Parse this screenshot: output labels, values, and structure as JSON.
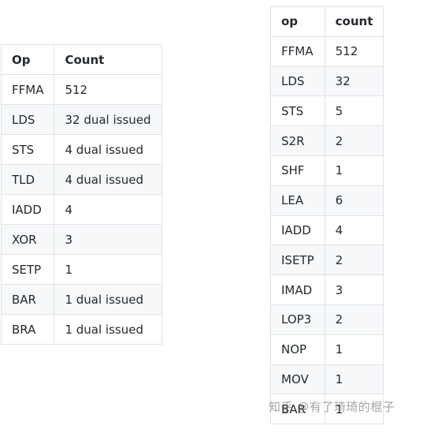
{
  "left_table": {
    "headers": [
      "Op",
      "Count"
    ],
    "rows": [
      [
        "FFMA",
        "512"
      ],
      [
        "LDS",
        "32 dual issued"
      ],
      [
        "STS",
        "4 dual issued"
      ],
      [
        "TLD",
        "4 dual issued"
      ],
      [
        "IADD",
        "4"
      ],
      [
        "XOR",
        "3"
      ],
      [
        "SETP",
        "1"
      ],
      [
        "BAR",
        "1 dual issued"
      ],
      [
        "BRA",
        "1 dual issued"
      ]
    ]
  },
  "right_table": {
    "headers": [
      "op",
      "count"
    ],
    "rows": [
      [
        "FFMA",
        "512"
      ],
      [
        "LDS",
        "32"
      ],
      [
        "STS",
        "5"
      ],
      [
        "S2R",
        "2"
      ],
      [
        "SHF",
        "1"
      ],
      [
        "LEA",
        "6"
      ],
      [
        "IADD",
        "4"
      ],
      [
        "ISETP",
        "2"
      ],
      [
        "IMAD",
        "3"
      ],
      [
        "LOP3",
        "2"
      ],
      [
        "NOP",
        "1"
      ],
      [
        "MOV",
        "1"
      ],
      [
        "BAR",
        "1"
      ]
    ]
  },
  "watermark": "知乎 @有了琦琦的棍子"
}
